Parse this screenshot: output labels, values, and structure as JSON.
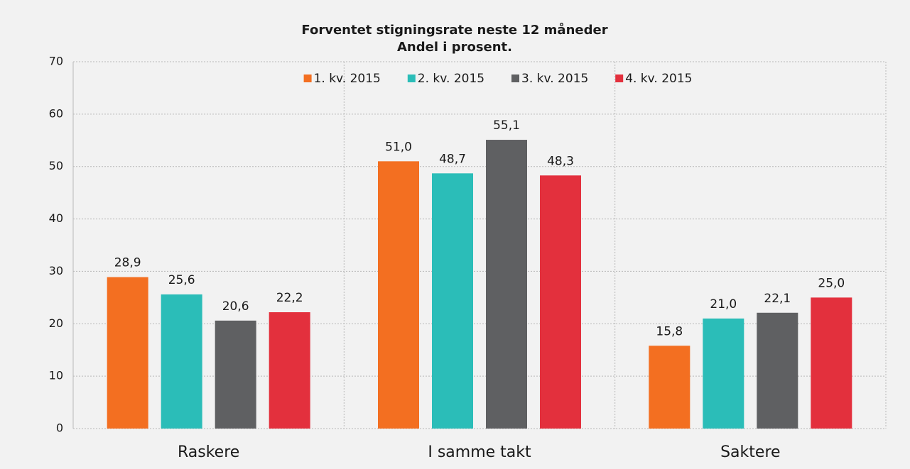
{
  "chart_data": {
    "type": "bar",
    "title": "Forventet stigningsrate neste 12 måneder",
    "subtitle": "Andel i prosent.",
    "categories": [
      "Raskere",
      "I samme takt",
      "Saktere"
    ],
    "series": [
      {
        "name": "1. kv. 2015",
        "color": "#f36f21",
        "values": [
          28.9,
          51.0,
          15.8
        ],
        "value_labels": [
          "28,9",
          "51,0",
          "15,8"
        ]
      },
      {
        "name": "2. kv. 2015",
        "color": "#2bbdb8",
        "values": [
          25.6,
          48.7,
          21.0
        ],
        "value_labels": [
          "25,6",
          "48,7",
          "21,0"
        ]
      },
      {
        "name": "3. kv. 2015",
        "color": "#5f6062",
        "values": [
          20.6,
          55.1,
          22.1
        ],
        "value_labels": [
          "20,6",
          "55,1",
          "22,1"
        ]
      },
      {
        "name": "4. kv. 2015",
        "color": "#e3303d",
        "values": [
          22.2,
          48.3,
          25.0
        ],
        "value_labels": [
          "22,2",
          "48,3",
          "25,0"
        ]
      }
    ],
    "ylim": [
      0,
      70
    ],
    "yticks": [
      0,
      10,
      20,
      30,
      40,
      50,
      60,
      70
    ],
    "grid": true,
    "legend": "top"
  }
}
